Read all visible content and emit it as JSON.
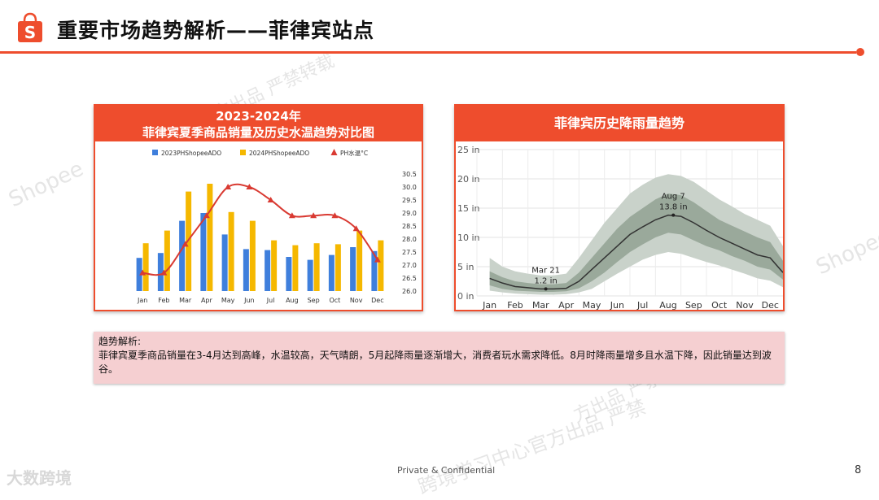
{
  "header": {
    "title": "重要市场趋势解析——菲律宾站点"
  },
  "watermarks": [
    "Shopee",
    "方出品 严禁转载",
    "Shopee",
    "方出品 严禁",
    "跨境学习中心官方出品 严禁"
  ],
  "chart_left": {
    "title_line1": "2023-2024年",
    "title_line2": "菲律宾夏季商品销量及历史水温趋势对比图"
  },
  "chart_right": {
    "title": "菲律宾历史降雨量趋势"
  },
  "analysis": {
    "heading": "趋势解析:",
    "text": "菲律宾夏季商品销量在3-4月达到高峰，水温较高，天气晴朗，5月起降雨量逐渐增大，消费者玩水需求降低。8月时降雨量增多且水温下降，因此销量达到波谷。"
  },
  "footer": {
    "confidential": "Private & Confidential",
    "page": "8",
    "brand": "大数跨境"
  },
  "colors": {
    "accent": "#ee4d2d",
    "bar2023": "#3f7fdc",
    "bar2024": "#f5b800",
    "line": "#d93a32",
    "band_dark": "#9aa99b",
    "band_light": "#c9d2ca"
  },
  "chart_data": [
    {
      "type": "bar",
      "title": "2023-2024年 菲律宾夏季商品销量及历史水温趋势对比图",
      "categories": [
        "Jan",
        "Feb",
        "Mar",
        "Apr",
        "May",
        "Jun",
        "Jul",
        "Aug",
        "Sep",
        "Oct",
        "Nov",
        "Dec"
      ],
      "series": [
        {
          "name": "2023PHShopeeADO",
          "values": [
            0.34,
            0.39,
            0.72,
            0.8,
            0.58,
            0.43,
            0.42,
            0.35,
            0.32,
            0.37,
            0.45,
            0.41
          ]
        },
        {
          "name": "2024PHShopeeADO",
          "values": [
            0.49,
            0.62,
            1.02,
            1.1,
            0.81,
            0.72,
            0.52,
            0.47,
            0.49,
            0.48,
            0.62,
            0.52
          ]
        },
        {
          "name": "PH水温°C",
          "axis": "right",
          "type": "line",
          "values": [
            26.7,
            26.7,
            27.8,
            28.9,
            30.0,
            30.0,
            29.5,
            28.9,
            28.9,
            28.9,
            28.4,
            27.2
          ]
        }
      ],
      "y_right": {
        "ticks": [
          "26.0",
          "26.5",
          "27.0",
          "27.5",
          "28.0",
          "28.5",
          "29.0",
          "29.5",
          "30.0",
          "30.5"
        ],
        "range": [
          26.0,
          30.5
        ]
      },
      "y_left_range": [
        0,
        1.2
      ],
      "legend": "top"
    },
    {
      "type": "area",
      "title": "菲律宾历史降雨量趋势",
      "x_ticks": [
        "Jan",
        "Feb",
        "Mar",
        "Apr",
        "May",
        "Jun",
        "Jul",
        "Aug",
        "Sep",
        "Oct",
        "Nov",
        "Dec"
      ],
      "y_ticks": [
        "0 in",
        "5 in",
        "10 in",
        "15 in",
        "20 in",
        "25 in"
      ],
      "ylim": [
        0,
        25
      ],
      "x": [
        0,
        0.5,
        1,
        1.5,
        2,
        2.5,
        3,
        3.5,
        4,
        4.5,
        5,
        5.5,
        6,
        6.5,
        7,
        7.5,
        8,
        8.5,
        9,
        9.5,
        10,
        10.5,
        11,
        11.5
      ],
      "median": [
        3.0,
        2.2,
        1.6,
        1.4,
        1.2,
        1.2,
        1.3,
        2.5,
        4.5,
        6.5,
        8.5,
        10.5,
        11.8,
        13.0,
        13.8,
        13.6,
        12.5,
        11.2,
        10.0,
        9.0,
        8.0,
        7.0,
        6.5,
        4.0
      ],
      "band_inner_low": [
        1.8,
        1.2,
        0.9,
        0.8,
        0.7,
        0.7,
        0.8,
        1.3,
        2.5,
        4.0,
        5.8,
        7.5,
        8.8,
        10.0,
        10.8,
        10.5,
        9.5,
        8.5,
        7.8,
        6.8,
        6.0,
        5.0,
        4.5,
        2.8
      ],
      "band_inner_high": [
        4.2,
        3.2,
        2.5,
        2.2,
        2.0,
        2.0,
        2.2,
        4.0,
        6.5,
        9.0,
        11.5,
        13.5,
        15.0,
        16.5,
        17.5,
        17.2,
        16.0,
        14.5,
        13.0,
        12.0,
        11.0,
        10.0,
        9.2,
        6.0
      ],
      "band_outer_low": [
        0.9,
        0.6,
        0.4,
        0.3,
        0.2,
        0.2,
        0.3,
        0.6,
        1.2,
        2.5,
        3.8,
        5.0,
        6.2,
        7.0,
        7.5,
        7.2,
        6.5,
        5.8,
        5.2,
        4.5,
        3.8,
        3.0,
        2.6,
        1.5
      ],
      "band_outer_high": [
        6.5,
        5.0,
        4.2,
        3.8,
        3.5,
        3.5,
        3.8,
        6.5,
        9.5,
        12.5,
        15.0,
        17.5,
        19.0,
        20.2,
        20.8,
        20.5,
        19.5,
        18.0,
        16.5,
        15.3,
        14.0,
        13.0,
        12.0,
        8.5
      ],
      "annotations": [
        {
          "label": "Mar 21",
          "value_label": "1.2 in",
          "x": 2.2,
          "y": 1.2
        },
        {
          "label": "Aug 7",
          "value_label": "13.8 in",
          "x": 7.2,
          "y": 13.8
        }
      ],
      "grid": true
    }
  ]
}
